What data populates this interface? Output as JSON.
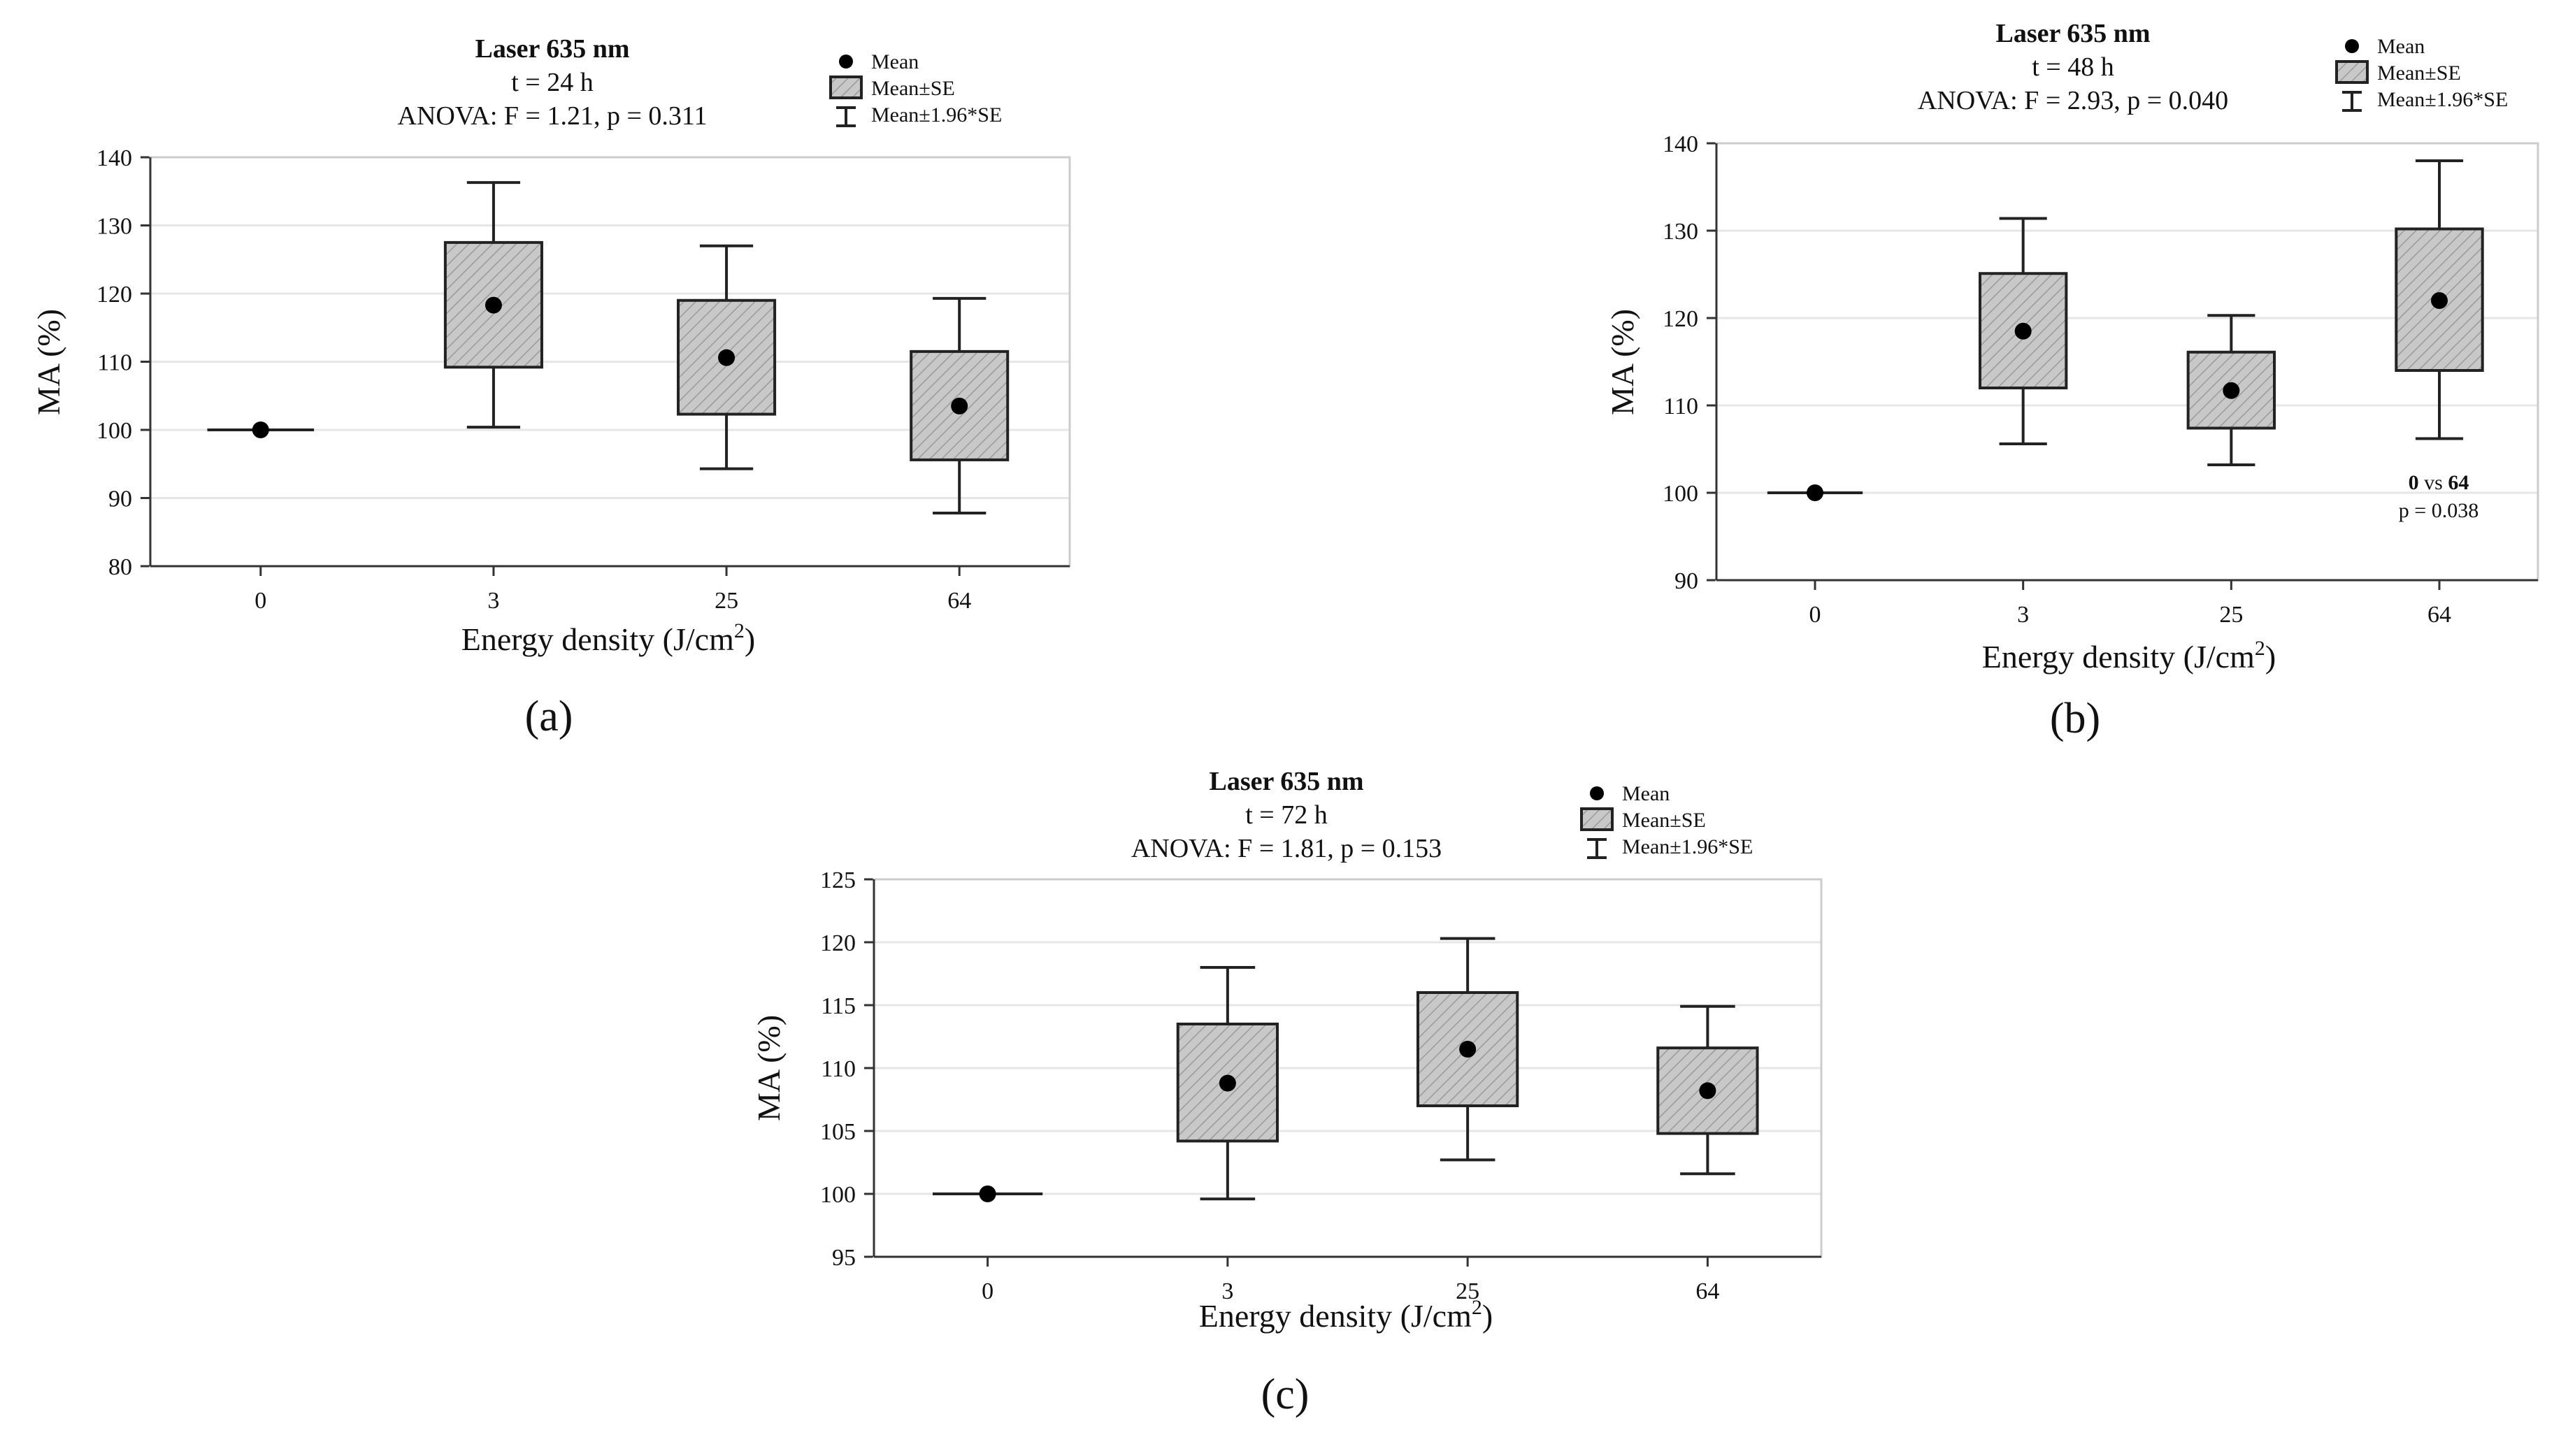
{
  "figure": {
    "box_fill": "#c8c8c8",
    "hatch_color": "#9a9a9a"
  },
  "chart_data": [
    {
      "type": "box",
      "panel_label": "(a)",
      "title": "Laser 635 nm",
      "subtitle": "t = 24 h",
      "anova": "ANOVA: F = 1.21, p = 0.311",
      "xlabel": "Energy density (J/cm",
      "xlabel_sup": "2",
      "xlabel_close": ")",
      "ylabel": "MA (%)",
      "ylim": [
        80,
        140
      ],
      "yticks": [
        80,
        90,
        100,
        110,
        120,
        130,
        140
      ],
      "categories": [
        "0",
        "3",
        "25",
        "64"
      ],
      "legend": [
        "Mean",
        "Mean±SE",
        "Mean±1.96*SE"
      ],
      "legend_position": "top-right",
      "series": [
        {
          "category": "0",
          "mean": 100,
          "se_low": 100,
          "se_high": 100,
          "ci_low": 100,
          "ci_high": 100
        },
        {
          "category": "3",
          "mean": 118.3,
          "se_low": 109.2,
          "se_high": 127.5,
          "ci_low": 100.4,
          "ci_high": 136.3
        },
        {
          "category": "25",
          "mean": 110.6,
          "se_low": 102.3,
          "se_high": 119.0,
          "ci_low": 94.3,
          "ci_high": 127.0
        },
        {
          "category": "64",
          "mean": 103.5,
          "se_low": 95.6,
          "se_high": 111.5,
          "ci_low": 87.8,
          "ci_high": 119.3
        }
      ],
      "annotation": null
    },
    {
      "type": "box",
      "panel_label": "(b)",
      "title": "Laser 635 nm",
      "subtitle": "t = 48 h",
      "anova": "ANOVA: F = 2.93, p = 0.040",
      "xlabel": "Energy density (J/cm",
      "xlabel_sup": "2",
      "xlabel_close": ")",
      "ylabel": "MA (%)",
      "ylim": [
        90,
        140
      ],
      "yticks": [
        90,
        100,
        110,
        120,
        130,
        140
      ],
      "categories": [
        "0",
        "3",
        "25",
        "64"
      ],
      "legend": [
        "Mean",
        "Mean±SE",
        "Mean±1.96*SE"
      ],
      "legend_position": "top-right",
      "series": [
        {
          "category": "0",
          "mean": 100,
          "se_low": 100,
          "se_high": 100,
          "ci_low": 100,
          "ci_high": 100
        },
        {
          "category": "3",
          "mean": 118.5,
          "se_low": 112.0,
          "se_high": 125.1,
          "ci_low": 105.6,
          "ci_high": 131.4
        },
        {
          "category": "25",
          "mean": 111.7,
          "se_low": 107.4,
          "se_high": 116.1,
          "ci_low": 103.2,
          "ci_high": 120.3
        },
        {
          "category": "64",
          "mean": 122.0,
          "se_low": 114.0,
          "se_high": 130.2,
          "ci_low": 106.2,
          "ci_high": 138.0
        }
      ],
      "annotation": {
        "line1_a": "0",
        "line1_mid": " vs ",
        "line1_b": "64",
        "line2": "p = 0.038"
      }
    },
    {
      "type": "box",
      "panel_label": "(c)",
      "title": "Laser 635 nm",
      "subtitle": "t = 72 h",
      "anova": "ANOVA: F = 1.81, p = 0.153",
      "xlabel": "Energy density (J/cm",
      "xlabel_sup": "2",
      "xlabel_close": ")",
      "ylabel": "MA (%)",
      "ylim": [
        95,
        125
      ],
      "yticks": [
        95,
        100,
        105,
        110,
        115,
        120,
        125
      ],
      "categories": [
        "0",
        "3",
        "25",
        "64"
      ],
      "legend": [
        "Mean",
        "Mean±SE",
        "Mean±1.96*SE"
      ],
      "legend_position": "top-right",
      "series": [
        {
          "category": "0",
          "mean": 100,
          "se_low": 100,
          "se_high": 100,
          "ci_low": 100,
          "ci_high": 100
        },
        {
          "category": "3",
          "mean": 108.8,
          "se_low": 104.2,
          "se_high": 113.5,
          "ci_low": 99.6,
          "ci_high": 118.0
        },
        {
          "category": "25",
          "mean": 111.5,
          "se_low": 107.0,
          "se_high": 116.0,
          "ci_low": 102.7,
          "ci_high": 120.3
        },
        {
          "category": "64",
          "mean": 108.2,
          "se_low": 104.8,
          "se_high": 111.6,
          "ci_low": 101.6,
          "ci_high": 114.9
        }
      ],
      "annotation": null
    }
  ]
}
